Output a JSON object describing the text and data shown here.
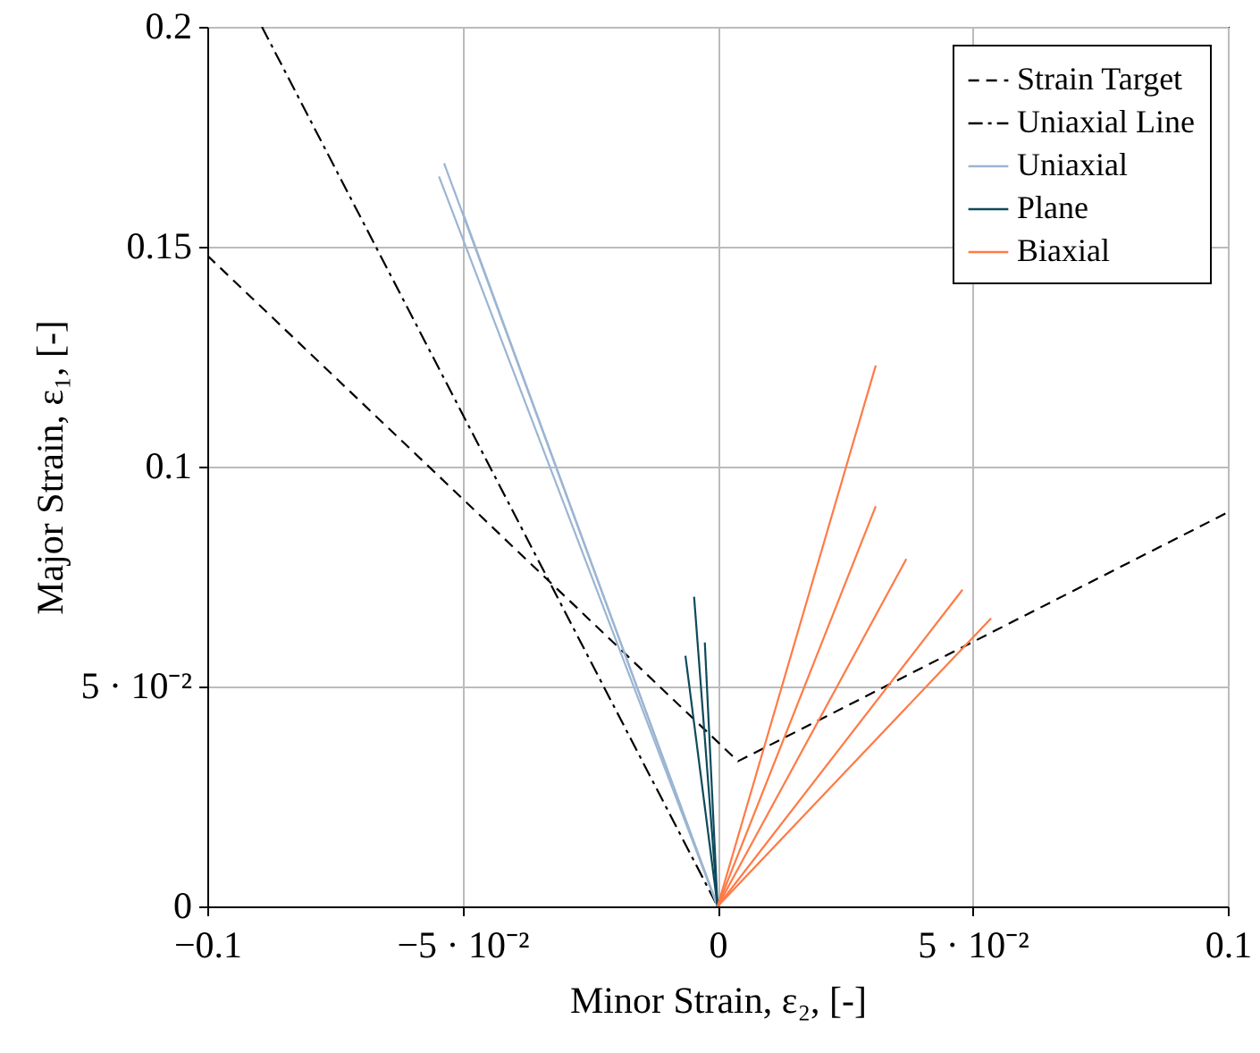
{
  "chart_data": {
    "type": "line",
    "xlabel": "Minor Strain, ε₂, [-]",
    "ylabel": "Major Strain, ε₁, [-]",
    "xlim": [
      -0.1,
      0.1
    ],
    "xticks": [
      {
        "value": -0.1,
        "label": "−0.1"
      },
      {
        "value": -0.05,
        "label": "−5 · 10⁻²"
      },
      0,
      {
        "value": 0.05,
        "label": "5 · 10⁻²"
      },
      0.1
    ],
    "ylim": [
      0,
      0.2
    ],
    "yticks": [
      0,
      {
        "value": 0.05,
        "label": "5 · 10⁻²"
      },
      0.1,
      0.15,
      0.2
    ],
    "grid": true,
    "legend": "top right",
    "marker": "none",
    "series": [
      {
        "name": "Strain Target",
        "color": "#000000",
        "line_style": "dashed",
        "x": [
          -0.1,
          0.004,
          0.1
        ],
        "values": [
          0.148,
          0.033,
          0.0896
        ]
      },
      {
        "name": "Uniaxial Line",
        "color": "#000000",
        "line_style": "dashdot",
        "x": [
          -0.0893,
          0
        ],
        "values": [
          0.2,
          0
        ]
      },
      {
        "name": "Uniaxial",
        "color": "#9bb5d3",
        "x": [
          0,
          -0.0536
        ],
        "values": [
          0,
          0.169
        ]
      },
      {
        "color": "#9bb5d3",
        "x": [
          0,
          -0.0546
        ],
        "values": [
          0,
          0.166
        ]
      },
      {
        "color": "#9bb5d3",
        "x": [
          0,
          -0.05
        ],
        "values": [
          0,
          0.158
        ]
      },
      {
        "name": "Plane",
        "color": "#0e4a5c",
        "x": [
          0,
          -0.0046
        ],
        "values": [
          0,
          0.0704
        ]
      },
      {
        "color": "#0e4a5c",
        "x": [
          0,
          -0.0063
        ],
        "values": [
          0,
          0.057
        ]
      },
      {
        "color": "#0e4a5c",
        "x": [
          0,
          -0.0025
        ],
        "values": [
          0,
          0.06
        ]
      },
      {
        "name": "Biaxial",
        "color": "#ff7a45",
        "x": [
          0,
          0.031
        ],
        "values": [
          0,
          0.123
        ]
      },
      {
        "color": "#ff7a45",
        "x": [
          0,
          0.031
        ],
        "values": [
          0,
          0.091
        ]
      },
      {
        "color": "#ff7a45",
        "x": [
          0,
          0.037
        ],
        "values": [
          0,
          0.079
        ]
      },
      {
        "color": "#ff7a45",
        "x": [
          0,
          0.048
        ],
        "values": [
          0,
          0.072
        ]
      },
      {
        "color": "#ff7a45",
        "x": [
          0,
          0.0536
        ],
        "values": [
          0,
          0.0655
        ]
      }
    ]
  }
}
